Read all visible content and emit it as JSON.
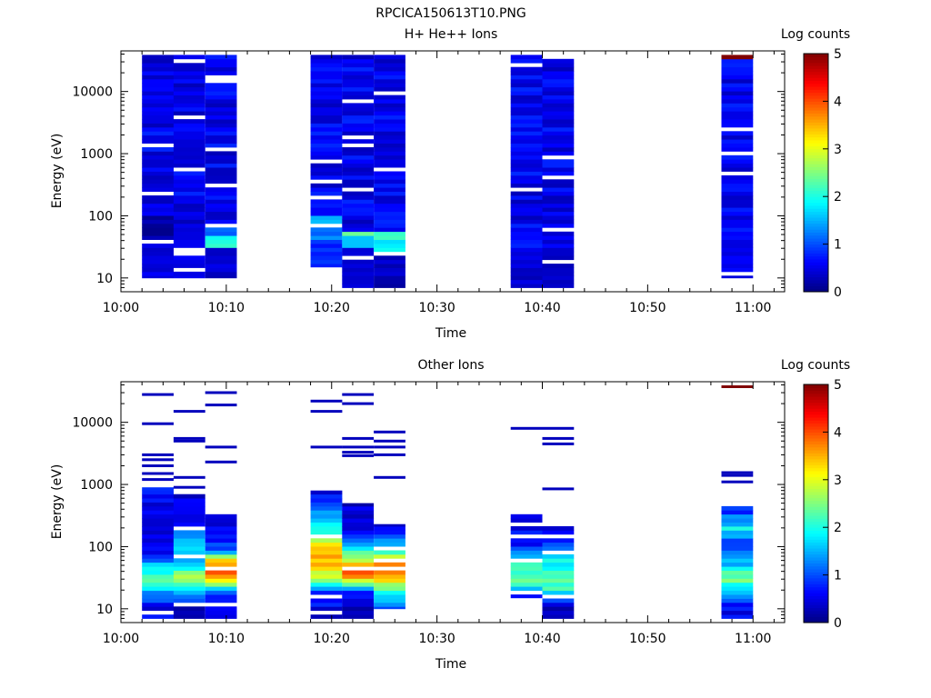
{
  "figure_title": "RPCICA150613T10.PNG",
  "chart_data": [
    {
      "type": "heatmap",
      "title": "H+ He++ Ions",
      "xlabel": "Time",
      "ylabel": "Energy (eV)",
      "colorbar_label": "Log counts",
      "x_ticks": [
        "10:00",
        "10:10",
        "10:20",
        "10:30",
        "10:40",
        "10:50",
        "11:00"
      ],
      "y_ticks": [
        "10",
        "100",
        "1000",
        "10000"
      ],
      "y_scale": "log",
      "ylim": [
        6,
        45000
      ],
      "colorbar_ticks": [
        "0",
        "1",
        "2",
        "3",
        "4",
        "5"
      ],
      "zlim": [
        0,
        5
      ],
      "colormap": "jet",
      "columns": [
        {
          "start": "10:02",
          "end": "10:05",
          "emin": 10,
          "emax": 40000,
          "low": [
            [
              10,
              40,
              0.5
            ],
            [
              40,
              100,
              0.2
            ]
          ]
        },
        {
          "start": "10:05",
          "end": "10:08",
          "emin": 10,
          "emax": 40000,
          "low": [
            [
              10,
              40,
              0.5
            ],
            [
              40,
              100,
              0.4
            ]
          ]
        },
        {
          "start": "10:08",
          "end": "10:11",
          "emin": 10,
          "emax": 40000,
          "low": [
            [
              10,
              30,
              0.4
            ],
            [
              30,
              45,
              2.0
            ],
            [
              45,
              80,
              1.2
            ]
          ]
        },
        {
          "start": "10:18",
          "end": "10:21",
          "emin": 15,
          "emax": 40000,
          "low": [
            [
              15,
              40,
              0.8
            ],
            [
              40,
              70,
              1.2
            ],
            [
              70,
              100,
              1.6
            ]
          ]
        },
        {
          "start": "10:21",
          "end": "10:24",
          "emin": 7,
          "emax": 40000,
          "low": [
            [
              7,
              30,
              0.4
            ],
            [
              30,
              45,
              1.5
            ],
            [
              45,
              60,
              2.3
            ]
          ]
        },
        {
          "start": "10:24",
          "end": "10:27",
          "emin": 7,
          "emax": 40000,
          "low": [
            [
              7,
              25,
              0.3
            ],
            [
              25,
              40,
              1.8
            ],
            [
              40,
              60,
              2.2
            ]
          ]
        },
        {
          "start": "10:37",
          "end": "10:40",
          "emin": 7,
          "emax": 40000,
          "low": [
            [
              7,
              30,
              0.4
            ],
            [
              30,
              60,
              0.7
            ]
          ]
        },
        {
          "start": "10:40",
          "end": "10:43",
          "emin": 7,
          "emax": 40000,
          "low": [
            [
              7,
              30,
              0.3
            ],
            [
              30,
              60,
              0.5
            ]
          ]
        },
        {
          "start": "10:57",
          "end": "11:00",
          "emin": 10,
          "emax": 40000,
          "low": [
            [
              10,
              60,
              0.6
            ]
          ],
          "top": [
            [
              32000,
              40000,
              5.0
            ]
          ]
        }
      ]
    },
    {
      "type": "heatmap",
      "title": "Other Ions",
      "xlabel": "Time",
      "ylabel": "Energy (eV)",
      "colorbar_label": "Log counts",
      "x_ticks": [
        "10:00",
        "10:10",
        "10:20",
        "10:30",
        "10:40",
        "10:50",
        "11:00"
      ],
      "y_ticks": [
        "10",
        "100",
        "1000",
        "10000"
      ],
      "y_scale": "log",
      "ylim": [
        6,
        45000
      ],
      "colorbar_ticks": [
        "0",
        "1",
        "2",
        "3",
        "4",
        "5"
      ],
      "zlim": [
        0,
        5
      ],
      "colormap": "jet",
      "columns": [
        {
          "start": "10:02",
          "end": "10:05",
          "emin": 7,
          "emax": 900,
          "profile": [
            [
              10,
              0.5
            ],
            [
              20,
              1.5
            ],
            [
              30,
              2.6
            ],
            [
              45,
              1.8
            ],
            [
              80,
              0.6
            ],
            [
              200,
              0.4
            ],
            [
              500,
              0.5
            ],
            [
              900,
              0.8
            ]
          ],
          "lines": [
            3000,
            2500,
            2000,
            1500,
            1200,
            9500,
            28000
          ]
        },
        {
          "start": "10:05",
          "end": "10:08",
          "emin": 7,
          "emax": 700,
          "profile": [
            [
              10,
              0.3
            ],
            [
              20,
              1.8
            ],
            [
              30,
              2.8
            ],
            [
              60,
              1.6
            ],
            [
              150,
              1.5
            ],
            [
              300,
              0.5
            ],
            [
              700,
              0.4
            ]
          ],
          "lines": [
            900,
            1300,
            5000,
            5500,
            15000
          ]
        },
        {
          "start": "10:08",
          "end": "10:11",
          "emin": 7,
          "emax": 350,
          "profile": [
            [
              10,
              0.4
            ],
            [
              20,
              1.2
            ],
            [
              30,
              3.5
            ],
            [
              40,
              4.0
            ],
            [
              60,
              3.2
            ],
            [
              90,
              1.0
            ],
            [
              350,
              0.3
            ]
          ],
          "lines": [
            2300,
            4000,
            19000,
            30000
          ]
        },
        {
          "start": "10:18",
          "end": "10:21",
          "emin": 7,
          "emax": 800,
          "profile": [
            [
              10,
              0.5
            ],
            [
              20,
              1.0
            ],
            [
              30,
              2.8
            ],
            [
              50,
              3.3
            ],
            [
              80,
              3.6
            ],
            [
              150,
              2.4
            ],
            [
              300,
              1.4
            ],
            [
              800,
              0.5
            ]
          ],
          "lines": [
            4000,
            15000,
            22000
          ]
        },
        {
          "start": "10:21",
          "end": "10:24",
          "emin": 7,
          "emax": 500,
          "profile": [
            [
              10,
              0.3
            ],
            [
              20,
              1.0
            ],
            [
              30,
              3.2
            ],
            [
              40,
              4.2
            ],
            [
              60,
              3.0
            ],
            [
              100,
              1.6
            ],
            [
              200,
              0.6
            ],
            [
              500,
              0.4
            ]
          ],
          "lines": [
            2900,
            3300,
            4000,
            5500,
            20000,
            28000
          ]
        },
        {
          "start": "10:24",
          "end": "10:27",
          "emin": 10,
          "emax": 230,
          "profile": [
            [
              10,
              0.8
            ],
            [
              20,
              2.2
            ],
            [
              30,
              3.2
            ],
            [
              40,
              4.0
            ],
            [
              60,
              3.2
            ],
            [
              100,
              1.8
            ],
            [
              230,
              0.4
            ]
          ],
          "lines": [
            1300,
            3000,
            4000,
            5000,
            7000
          ]
        },
        {
          "start": "10:37",
          "end": "10:40",
          "emin": 15,
          "emax": 350,
          "profile": [
            [
              15,
              0.7
            ],
            [
              20,
              1.6
            ],
            [
              30,
              2.4
            ],
            [
              60,
              2.1
            ],
            [
              100,
              0.8
            ],
            [
              350,
              0.4
            ]
          ],
          "lines": [
            8000
          ]
        },
        {
          "start": "10:40",
          "end": "10:43",
          "emin": 7,
          "emax": 220,
          "profile": [
            [
              7,
              0.3
            ],
            [
              10,
              0.3
            ],
            [
              15,
              1.2
            ],
            [
              20,
              2.0
            ],
            [
              30,
              2.4
            ],
            [
              60,
              1.8
            ],
            [
              100,
              1.1
            ],
            [
              220,
              0.4
            ]
          ],
          "lines": [
            850,
            4500,
            5500,
            8000
          ]
        },
        {
          "start": "10:57",
          "end": "11:00",
          "emin": 7,
          "emax": 450,
          "profile": [
            [
              10,
              0.6
            ],
            [
              20,
              1.5
            ],
            [
              30,
              2.6
            ],
            [
              50,
              1.6
            ],
            [
              100,
              0.8
            ],
            [
              200,
              1.8
            ],
            [
              450,
              0.6
            ]
          ],
          "lines": [
            1100,
            1400,
            1550
          ],
          "top": [
            [
              36000,
              38000,
              5.0
            ]
          ]
        }
      ]
    }
  ]
}
